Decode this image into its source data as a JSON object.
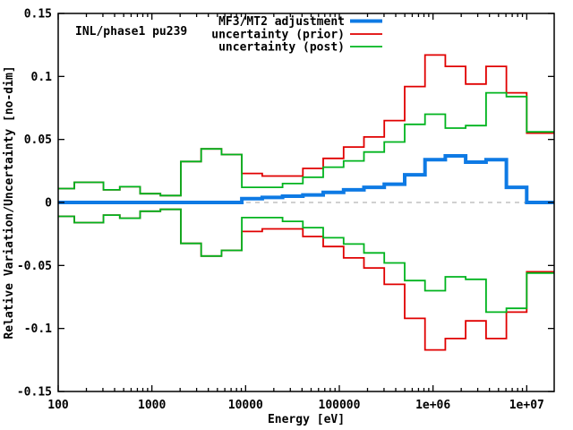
{
  "chart": {
    "annotation": "INL/phase1 pu239",
    "y_axis_label": "Relative Variation/Uncertainty [no-dim]",
    "x_axis_label": "Energy [eV]",
    "legend": [
      {
        "label": "MF3/MT2 adjustment",
        "color": "#0e7ae4"
      },
      {
        "label": "uncertainty (prior)",
        "color": "#e00000"
      },
      {
        "label": "uncertainty (post)",
        "color": "#00b41e"
      }
    ]
  },
  "chart_data": {
    "type": "line",
    "subtype": "step-histogram",
    "x_scale": "log",
    "x_range": [
      100,
      19640000
    ],
    "y_range": [
      -0.15,
      0.15
    ],
    "grid": false,
    "zero_line": {
      "style": "dashed",
      "color": "#b4b4b4"
    },
    "x_major_ticks": {
      "values": [
        100,
        1000,
        10000,
        100000,
        1000000,
        10000000
      ],
      "labels": [
        "100",
        "1000",
        "10000",
        "100000",
        "1e+06",
        "1e+07"
      ]
    },
    "y_major_ticks": {
      "values": [
        -0.15,
        -0.1,
        -0.05,
        0,
        0.05,
        0.1,
        0.15
      ],
      "labels": [
        "-0.15",
        "-0.1",
        "-0.05",
        "0",
        "0.05",
        "0.1",
        "0.15"
      ]
    },
    "x_group_boundaries_eV": [
      100,
      148.6,
      304.3,
      454,
      748.5,
      1234,
      2035,
      3355,
      5531,
      9119,
      15034,
      24788,
      40868,
      67380,
      111090,
      183156,
      301974,
      497871,
      820850,
      1353350,
      2231300,
      3678790,
      6065310,
      10000000,
      19640000
    ],
    "series": [
      {
        "name": "MF3/MT2 adjustment",
        "color": "#0e7ae4",
        "width": 4,
        "mirrored": false,
        "values": [
          0,
          0,
          0,
          0,
          0,
          0,
          0,
          0,
          0,
          0.003,
          0.004,
          0.005,
          0.006,
          0.008,
          0.01,
          0.012,
          0.0145,
          0.022,
          0.034,
          0.037,
          0.032,
          0.034,
          0.012,
          0
        ]
      },
      {
        "name": "uncertainty (prior)",
        "color": "#e00000",
        "width": 1.8,
        "mirrored": true,
        "values": [
          0.011,
          0.016,
          0.01,
          0.0125,
          0.007,
          0.0055,
          0.0325,
          0.0425,
          0.038,
          0.023,
          0.021,
          0.021,
          0.027,
          0.035,
          0.044,
          0.052,
          0.065,
          0.092,
          0.117,
          0.108,
          0.094,
          0.108,
          0.087,
          0.055
        ]
      },
      {
        "name": "uncertainty (post)",
        "color": "#00b41e",
        "width": 1.8,
        "mirrored": true,
        "values": [
          0.011,
          0.016,
          0.01,
          0.0125,
          0.007,
          0.0055,
          0.0325,
          0.0425,
          0.038,
          0.012,
          0.012,
          0.015,
          0.02,
          0.028,
          0.033,
          0.04,
          0.048,
          0.062,
          0.07,
          0.059,
          0.061,
          0.087,
          0.084,
          0.056
        ]
      }
    ]
  }
}
